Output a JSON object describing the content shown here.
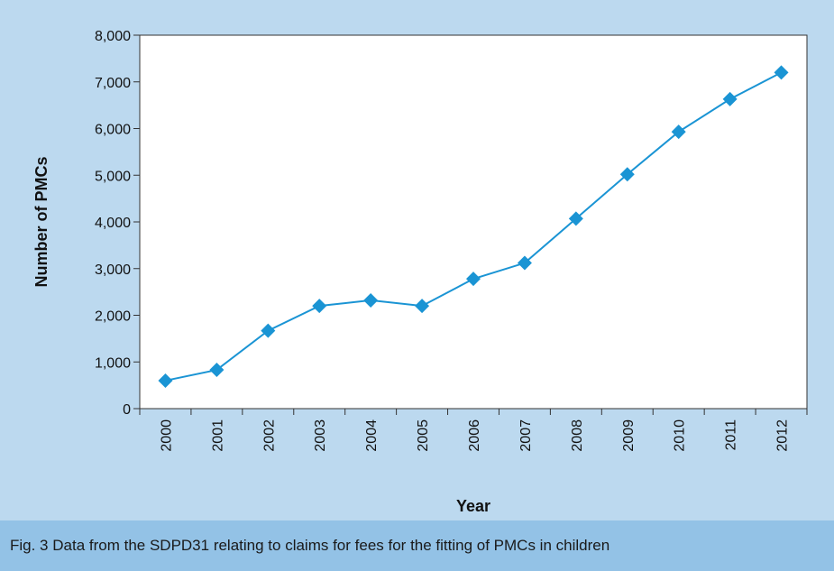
{
  "chart_data": {
    "type": "line",
    "xlabel": "Year",
    "ylabel": "Number of PMCs",
    "ylim": [
      0,
      8000
    ],
    "yticks": [
      0,
      1000,
      2000,
      3000,
      4000,
      5000,
      6000,
      7000,
      8000
    ],
    "ytick_labels": [
      "0",
      "1,000",
      "2,000",
      "3,000",
      "4,000",
      "5,000",
      "6,000",
      "7,000",
      "8,000"
    ],
    "categories": [
      "2000",
      "2001",
      "2002",
      "2003",
      "2004",
      "2005",
      "2006",
      "2007",
      "2008",
      "2009",
      "2010",
      "2011",
      "2012"
    ],
    "series": [
      {
        "values": [
          600,
          830,
          1670,
          2200,
          2320,
          2200,
          2780,
          3120,
          4070,
          5020,
          5930,
          6630,
          7200
        ],
        "color": "#1a94d4",
        "marker": "diamond"
      }
    ],
    "grid": false,
    "legend": "none"
  },
  "caption": {
    "text": "Fig. 3  Data from the SDPD31 relating to claims for fees for the fitting of PMCs in children"
  },
  "colors": {
    "plot_background": "#ffffff",
    "panel_background": "#bcd9ef",
    "caption_background": "#93c2e6",
    "series": "#1a94d4"
  }
}
